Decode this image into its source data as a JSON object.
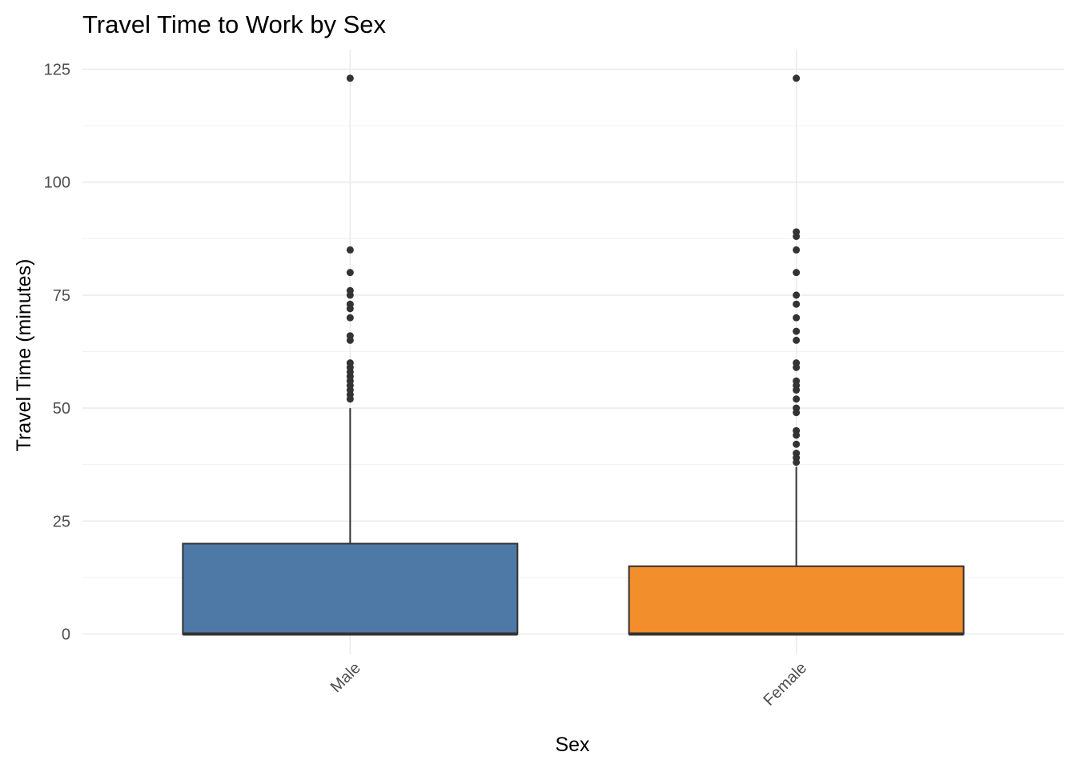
{
  "chart_data": {
    "type": "box",
    "title": "Travel Time to Work by Sex",
    "xlabel": "Sex",
    "ylabel": "Travel Time (minutes)",
    "ylim": [
      -5,
      128
    ],
    "y_ticks": [
      0,
      25,
      50,
      75,
      100,
      125
    ],
    "y_tick_labels": [
      "0",
      "25",
      "50",
      "75",
      "100",
      "125"
    ],
    "categories": [
      "Male",
      "Female"
    ],
    "x_tick_rotation_deg": -45,
    "grid": true,
    "legend": "none",
    "series": [
      {
        "category": "Male",
        "color": "#4e79a7",
        "q1": 0,
        "median": 0,
        "q3": 20,
        "whisker_low": 0,
        "whisker_high": 50,
        "outliers": [
          52,
          53,
          54,
          55,
          56,
          57,
          58,
          59,
          60,
          65,
          66,
          70,
          72,
          73,
          75,
          76,
          80,
          85,
          123
        ]
      },
      {
        "category": "Female",
        "color": "#f28e2b",
        "q1": 0,
        "median": 0,
        "q3": 15,
        "whisker_low": 0,
        "whisker_high": 37,
        "outliers": [
          38,
          39,
          40,
          42,
          44,
          45,
          49,
          50,
          52,
          54,
          55,
          56,
          59,
          60,
          65,
          67,
          70,
          73,
          75,
          80,
          85,
          88,
          89,
          123
        ]
      }
    ]
  }
}
